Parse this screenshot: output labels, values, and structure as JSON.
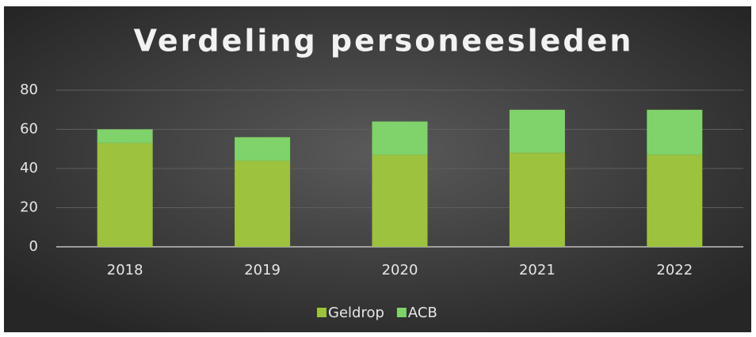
{
  "chart_data": {
    "type": "bar",
    "stacked": true,
    "title": "Verdeling personeesleden",
    "categories": [
      "2018",
      "2019",
      "2020",
      "2021",
      "2022"
    ],
    "series": [
      {
        "name": "Geldrop",
        "color": "#9dc23e",
        "values": [
          53,
          44,
          47,
          48,
          47
        ]
      },
      {
        "name": "ACB",
        "color": "#7fd36a",
        "values": [
          7,
          12,
          17,
          22,
          23
        ]
      }
    ],
    "ylim": [
      0,
      80
    ],
    "yticks": [
      0,
      20,
      40,
      60,
      80
    ],
    "grid": true,
    "legend": "bottom"
  }
}
